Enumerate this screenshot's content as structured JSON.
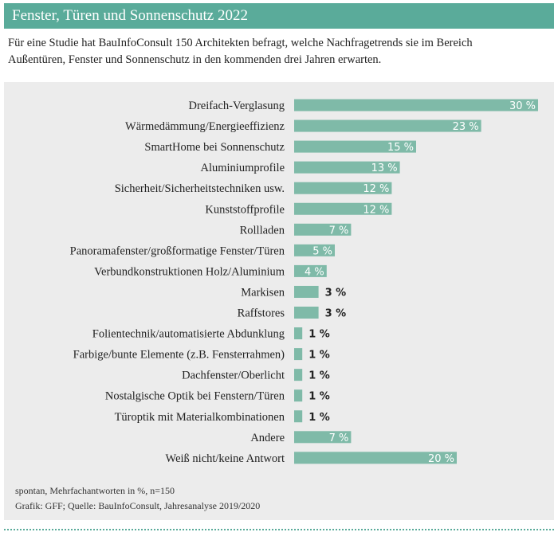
{
  "header": {
    "title": "Fenster, Türen und Sonnenschutz 2022"
  },
  "intro": "Für eine Studie hat BauInfoConsult 150 Architekten befragt, welche Nachfragetrends sie im Bereich Außentüren, Fenster und Sonnenschutz in den kommenden drei Jahren erwarten.",
  "footer": {
    "note": "spontan, Mehrfachantworten in %, n=150",
    "source": "Grafik: GFF; Quelle: BauInfoConsult, Jahresanalyse 2019/2020"
  },
  "colors": {
    "bar": "#7fbaa8",
    "header": "#5aab9a",
    "panel": "#ececec"
  },
  "chart_data": {
    "type": "bar",
    "orientation": "horizontal",
    "unit": "%",
    "grid": false,
    "categories": [
      "Dreifach-Verglasung",
      "Wärmedämmung/Energieeffizienz",
      "SmartHome bei Sonnenschutz",
      "Aluminiumprofile",
      "Sicherheit/Sicherheitstechniken usw.",
      "Kunststoffprofile",
      "Rollladen",
      "Panoramafenster/großformatige Fenster/Türen",
      "Verbundkonstruktionen Holz/Aluminium",
      "Markisen",
      "Raffstores",
      "Folientechnik/automatisierte Abdunklung",
      "Farbige/bunte Elemente (z.B. Fensterrahmen)",
      "Dachfenster/Oberlicht",
      "Nostalgische Optik bei Fenstern/Türen",
      "Türoptik mit Materialkombinationen",
      "Andere",
      "Weiß nicht/keine Antwort"
    ],
    "values": [
      30,
      23,
      15,
      13,
      12,
      12,
      7,
      5,
      4,
      3,
      3,
      1,
      1,
      1,
      1,
      1,
      7,
      20
    ],
    "data_labels": [
      "30 %",
      "23 %",
      "15 %",
      "13 %",
      "12 %",
      "12 %",
      "7 %",
      "5 %",
      "4 %",
      "3 %",
      "3 %",
      "1 %",
      "1 %",
      "1 %",
      "1 %",
      "1 %",
      "7 %",
      "20 %"
    ]
  }
}
